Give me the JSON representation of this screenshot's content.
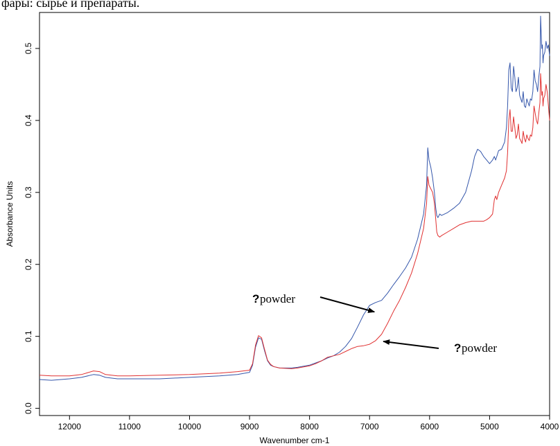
{
  "header": {
    "cropped_text": "фары: сырье и препараты."
  },
  "chart_data": {
    "type": "line",
    "title": "",
    "xlabel": "Wavenumber cm-1",
    "ylabel": "Absorbance Units",
    "xlim": [
      12500,
      4000
    ],
    "ylim": [
      -0.01,
      0.55
    ],
    "x_reversed": true,
    "xticks": [
      12000,
      11000,
      10000,
      9000,
      8000,
      7000,
      6000,
      5000,
      4000
    ],
    "yticks": [
      0.0,
      0.1,
      0.2,
      0.3,
      0.4,
      0.5
    ],
    "xtick_labels": [
      "12000",
      "11000",
      "10000",
      "9000",
      "8000",
      "7000",
      "6000",
      "5000",
      "4000"
    ],
    "ytick_labels": [
      "0.0",
      "0.1",
      "0.2",
      "0.3",
      "0.4",
      "0.5"
    ],
    "grid": false,
    "series": [
      {
        "color": "#3355aa",
        "x": [
          12500,
          12300,
          12000,
          11800,
          11600,
          11500,
          11400,
          11200,
          11000,
          10500,
          10000,
          9500,
          9200,
          9000,
          8950,
          8900,
          8850,
          8800,
          8750,
          8700,
          8650,
          8600,
          8500,
          8300,
          8200,
          8000,
          7900,
          7800,
          7700,
          7600,
          7500,
          7400,
          7300,
          7200,
          7100,
          7000,
          6900,
          6800,
          6700,
          6600,
          6500,
          6400,
          6300,
          6200,
          6100,
          6050,
          6030,
          6010,
          5980,
          5950,
          5920,
          5900,
          5880,
          5860,
          5830,
          5800,
          5700,
          5600,
          5500,
          5400,
          5300,
          5250,
          5200,
          5150,
          5100,
          5050,
          5000,
          4950,
          4920,
          4900,
          4880,
          4850,
          4800,
          4750,
          4720,
          4700,
          4680,
          4660,
          4640,
          4620,
          4600,
          4580,
          4560,
          4540,
          4520,
          4500,
          4480,
          4460,
          4440,
          4420,
          4400,
          4380,
          4360,
          4340,
          4320,
          4300,
          4280,
          4260,
          4240,
          4220,
          4200,
          4180,
          4160,
          4150,
          4140,
          4130,
          4120,
          4110,
          4100,
          4080,
          4060,
          4040,
          4020,
          4000
        ],
        "y": [
          0.04,
          0.039,
          0.041,
          0.043,
          0.047,
          0.046,
          0.043,
          0.041,
          0.041,
          0.041,
          0.043,
          0.045,
          0.047,
          0.05,
          0.06,
          0.085,
          0.098,
          0.096,
          0.08,
          0.066,
          0.06,
          0.058,
          0.056,
          0.056,
          0.057,
          0.06,
          0.063,
          0.066,
          0.07,
          0.073,
          0.078,
          0.086,
          0.097,
          0.113,
          0.13,
          0.143,
          0.147,
          0.15,
          0.16,
          0.172,
          0.183,
          0.195,
          0.21,
          0.235,
          0.27,
          0.31,
          0.362,
          0.345,
          0.335,
          0.32,
          0.3,
          0.28,
          0.268,
          0.265,
          0.27,
          0.268,
          0.272,
          0.278,
          0.285,
          0.3,
          0.33,
          0.35,
          0.36,
          0.357,
          0.35,
          0.345,
          0.34,
          0.345,
          0.35,
          0.345,
          0.35,
          0.358,
          0.36,
          0.37,
          0.39,
          0.42,
          0.47,
          0.48,
          0.445,
          0.44,
          0.475,
          0.46,
          0.44,
          0.445,
          0.46,
          0.435,
          0.43,
          0.425,
          0.44,
          0.42,
          0.418,
          0.43,
          0.425,
          0.42,
          0.43,
          0.428,
          0.44,
          0.47,
          0.455,
          0.45,
          0.44,
          0.46,
          0.475,
          0.545,
          0.52,
          0.5,
          0.505,
          0.48,
          0.49,
          0.495,
          0.51,
          0.5,
          0.505,
          0.49
        ]
      },
      {
        "color": "#e03030",
        "x": [
          12500,
          12300,
          12000,
          11800,
          11600,
          11500,
          11400,
          11200,
          11000,
          10500,
          10000,
          9500,
          9200,
          9000,
          8950,
          8900,
          8850,
          8800,
          8750,
          8700,
          8650,
          8600,
          8500,
          8300,
          8200,
          8000,
          7900,
          7800,
          7700,
          7600,
          7500,
          7400,
          7300,
          7200,
          7100,
          7000,
          6900,
          6800,
          6700,
          6600,
          6500,
          6400,
          6300,
          6200,
          6100,
          6050,
          6030,
          6010,
          5980,
          5950,
          5920,
          5900,
          5880,
          5860,
          5830,
          5800,
          5700,
          5600,
          5500,
          5400,
          5300,
          5250,
          5200,
          5150,
          5100,
          5050,
          5000,
          4950,
          4920,
          4900,
          4880,
          4850,
          4800,
          4750,
          4720,
          4700,
          4680,
          4660,
          4640,
          4620,
          4600,
          4580,
          4560,
          4540,
          4520,
          4500,
          4480,
          4460,
          4440,
          4420,
          4400,
          4380,
          4360,
          4340,
          4320,
          4300,
          4280,
          4260,
          4240,
          4220,
          4200,
          4180,
          4160,
          4150,
          4140,
          4130,
          4120,
          4110,
          4100,
          4080,
          4060,
          4040,
          4020,
          4000
        ],
        "y": [
          0.046,
          0.045,
          0.045,
          0.047,
          0.052,
          0.051,
          0.047,
          0.045,
          0.045,
          0.046,
          0.047,
          0.049,
          0.051,
          0.053,
          0.062,
          0.088,
          0.101,
          0.098,
          0.082,
          0.067,
          0.061,
          0.058,
          0.056,
          0.055,
          0.056,
          0.059,
          0.062,
          0.066,
          0.071,
          0.073,
          0.075,
          0.079,
          0.083,
          0.086,
          0.087,
          0.089,
          0.094,
          0.103,
          0.118,
          0.135,
          0.15,
          0.168,
          0.188,
          0.215,
          0.25,
          0.285,
          0.322,
          0.31,
          0.305,
          0.3,
          0.285,
          0.265,
          0.245,
          0.24,
          0.238,
          0.24,
          0.245,
          0.25,
          0.255,
          0.258,
          0.26,
          0.26,
          0.26,
          0.26,
          0.26,
          0.262,
          0.265,
          0.27,
          0.29,
          0.295,
          0.29,
          0.3,
          0.31,
          0.32,
          0.33,
          0.355,
          0.4,
          0.415,
          0.385,
          0.385,
          0.405,
          0.39,
          0.375,
          0.38,
          0.395,
          0.375,
          0.372,
          0.368,
          0.385,
          0.375,
          0.37,
          0.38,
          0.375,
          0.372,
          0.38,
          0.378,
          0.39,
          0.42,
          0.41,
          0.4,
          0.395,
          0.41,
          0.425,
          0.465,
          0.45,
          0.435,
          0.44,
          0.42,
          0.43,
          0.435,
          0.45,
          0.44,
          0.42,
          0.4
        ]
      }
    ],
    "annotations": [
      {
        "marker": "?",
        "text": "powder",
        "arrow_to_x": 6920,
        "arrow_to_y": 0.134
      },
      {
        "marker": "?",
        "text": "powder",
        "arrow_to_x": 6770,
        "arrow_to_y": 0.093
      }
    ]
  }
}
